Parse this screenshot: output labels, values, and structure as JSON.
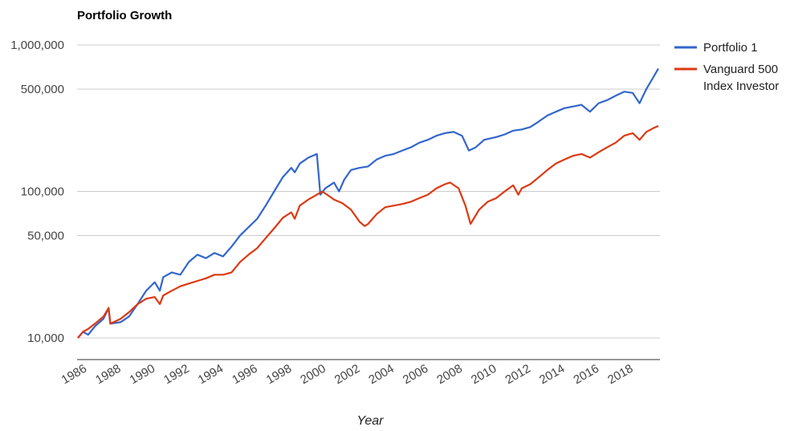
{
  "chart_data": {
    "type": "line",
    "title": "Portfolio Growth",
    "xlabel": "Year",
    "ylabel": "",
    "y_scale": "log",
    "ylim": [
      9000,
      1100000
    ],
    "xlim": [
      1986,
      2020
    ],
    "y_ticks": [
      {
        "value": 10000,
        "label": "10,000"
      },
      {
        "value": 50000,
        "label": "50,000"
      },
      {
        "value": 100000,
        "label": "100,000"
      },
      {
        "value": 500000,
        "label": "500,000"
      },
      {
        "value": 1000000,
        "label": "1,000,000"
      }
    ],
    "x_ticks": [
      {
        "value": 1986,
        "label": "1986"
      },
      {
        "value": 1988,
        "label": "1988"
      },
      {
        "value": 1990,
        "label": "1990"
      },
      {
        "value": 1992,
        "label": "1992"
      },
      {
        "value": 1994,
        "label": "1994"
      },
      {
        "value": 1996,
        "label": "1996"
      },
      {
        "value": 1998,
        "label": "1998"
      },
      {
        "value": 2000,
        "label": "2000"
      },
      {
        "value": 2002,
        "label": "2002"
      },
      {
        "value": 2004,
        "label": "2004"
      },
      {
        "value": 2006,
        "label": "2006"
      },
      {
        "value": 2008,
        "label": "2008"
      },
      {
        "value": 2010,
        "label": "2010"
      },
      {
        "value": 2012,
        "label": "2012"
      },
      {
        "value": 2014,
        "label": "2014"
      },
      {
        "value": 2016,
        "label": "2016"
      },
      {
        "value": 2018,
        "label": "2018"
      }
    ],
    "grid": true,
    "legend_position": "right",
    "series": [
      {
        "name": "Portfolio 1",
        "color": "#3366cc",
        "points": [
          [
            1986.0,
            10000
          ],
          [
            1986.3,
            11000
          ],
          [
            1986.6,
            10500
          ],
          [
            1987.0,
            12000
          ],
          [
            1987.5,
            13500
          ],
          [
            1987.8,
            16000
          ],
          [
            1987.9,
            12500
          ],
          [
            1988.5,
            12800
          ],
          [
            1989.0,
            14000
          ],
          [
            1989.5,
            17000
          ],
          [
            1990.0,
            21000
          ],
          [
            1990.5,
            24000
          ],
          [
            1990.8,
            21000
          ],
          [
            1991.0,
            26000
          ],
          [
            1991.5,
            28000
          ],
          [
            1992.0,
            27000
          ],
          [
            1992.5,
            33000
          ],
          [
            1993.0,
            37000
          ],
          [
            1993.5,
            35000
          ],
          [
            1994.0,
            38000
          ],
          [
            1994.5,
            36000
          ],
          [
            1995.0,
            42000
          ],
          [
            1995.5,
            50000
          ],
          [
            1996.0,
            57000
          ],
          [
            1996.5,
            65000
          ],
          [
            1997.0,
            80000
          ],
          [
            1997.5,
            100000
          ],
          [
            1998.0,
            125000
          ],
          [
            1998.5,
            145000
          ],
          [
            1998.7,
            135000
          ],
          [
            1999.0,
            155000
          ],
          [
            1999.5,
            170000
          ],
          [
            2000.0,
            180000
          ],
          [
            2000.2,
            95000
          ],
          [
            2000.5,
            105000
          ],
          [
            2001.0,
            115000
          ],
          [
            2001.3,
            100000
          ],
          [
            2001.6,
            120000
          ],
          [
            2002.0,
            140000
          ],
          [
            2002.5,
            145000
          ],
          [
            2003.0,
            148000
          ],
          [
            2003.5,
            165000
          ],
          [
            2004.0,
            175000
          ],
          [
            2004.5,
            180000
          ],
          [
            2005.0,
            190000
          ],
          [
            2005.5,
            200000
          ],
          [
            2006.0,
            215000
          ],
          [
            2006.5,
            225000
          ],
          [
            2007.0,
            240000
          ],
          [
            2007.5,
            250000
          ],
          [
            2008.0,
            255000
          ],
          [
            2008.5,
            240000
          ],
          [
            2008.9,
            190000
          ],
          [
            2009.3,
            200000
          ],
          [
            2009.8,
            225000
          ],
          [
            2010.5,
            235000
          ],
          [
            2011.0,
            245000
          ],
          [
            2011.5,
            260000
          ],
          [
            2012.0,
            265000
          ],
          [
            2012.5,
            275000
          ],
          [
            2013.0,
            300000
          ],
          [
            2013.5,
            330000
          ],
          [
            2014.0,
            350000
          ],
          [
            2014.5,
            370000
          ],
          [
            2015.0,
            380000
          ],
          [
            2015.5,
            390000
          ],
          [
            2016.0,
            350000
          ],
          [
            2016.5,
            400000
          ],
          [
            2017.0,
            420000
          ],
          [
            2017.5,
            450000
          ],
          [
            2018.0,
            480000
          ],
          [
            2018.5,
            470000
          ],
          [
            2018.9,
            400000
          ],
          [
            2019.3,
            500000
          ],
          [
            2019.7,
            600000
          ],
          [
            2020.0,
            690000
          ]
        ]
      },
      {
        "name": "Vanguard 500 Index Investor",
        "color": "#dc3912",
        "points": [
          [
            1986.0,
            10000
          ],
          [
            1986.3,
            11000
          ],
          [
            1986.6,
            11500
          ],
          [
            1987.0,
            12500
          ],
          [
            1987.5,
            14000
          ],
          [
            1987.8,
            16000
          ],
          [
            1987.9,
            12500
          ],
          [
            1988.5,
            13500
          ],
          [
            1989.0,
            15000
          ],
          [
            1989.5,
            17000
          ],
          [
            1990.0,
            18500
          ],
          [
            1990.5,
            19000
          ],
          [
            1990.8,
            17000
          ],
          [
            1991.0,
            19500
          ],
          [
            1991.5,
            21000
          ],
          [
            1992.0,
            22500
          ],
          [
            1992.5,
            23500
          ],
          [
            1993.0,
            24500
          ],
          [
            1993.5,
            25500
          ],
          [
            1994.0,
            27000
          ],
          [
            1994.5,
            27000
          ],
          [
            1995.0,
            28000
          ],
          [
            1995.5,
            33000
          ],
          [
            1996.0,
            37000
          ],
          [
            1996.5,
            41000
          ],
          [
            1997.0,
            48000
          ],
          [
            1997.5,
            56000
          ],
          [
            1998.0,
            66000
          ],
          [
            1998.5,
            72000
          ],
          [
            1998.7,
            65000
          ],
          [
            1999.0,
            80000
          ],
          [
            1999.5,
            88000
          ],
          [
            2000.0,
            95000
          ],
          [
            2000.3,
            100000
          ],
          [
            2000.6,
            95000
          ],
          [
            2001.0,
            88000
          ],
          [
            2001.5,
            83000
          ],
          [
            2002.0,
            75000
          ],
          [
            2002.5,
            62000
          ],
          [
            2002.8,
            58000
          ],
          [
            2003.0,
            60000
          ],
          [
            2003.5,
            70000
          ],
          [
            2004.0,
            78000
          ],
          [
            2004.5,
            80000
          ],
          [
            2005.0,
            82000
          ],
          [
            2005.5,
            85000
          ],
          [
            2006.0,
            90000
          ],
          [
            2006.5,
            95000
          ],
          [
            2007.0,
            105000
          ],
          [
            2007.5,
            112000
          ],
          [
            2007.8,
            115000
          ],
          [
            2008.3,
            105000
          ],
          [
            2008.7,
            80000
          ],
          [
            2009.0,
            60000
          ],
          [
            2009.5,
            75000
          ],
          [
            2010.0,
            85000
          ],
          [
            2010.5,
            90000
          ],
          [
            2011.0,
            100000
          ],
          [
            2011.5,
            110000
          ],
          [
            2011.8,
            95000
          ],
          [
            2012.0,
            105000
          ],
          [
            2012.5,
            112000
          ],
          [
            2013.0,
            125000
          ],
          [
            2013.5,
            140000
          ],
          [
            2014.0,
            155000
          ],
          [
            2014.5,
            165000
          ],
          [
            2015.0,
            175000
          ],
          [
            2015.5,
            180000
          ],
          [
            2016.0,
            170000
          ],
          [
            2016.5,
            185000
          ],
          [
            2017.0,
            200000
          ],
          [
            2017.5,
            215000
          ],
          [
            2018.0,
            240000
          ],
          [
            2018.5,
            250000
          ],
          [
            2018.9,
            225000
          ],
          [
            2019.3,
            255000
          ],
          [
            2019.7,
            270000
          ],
          [
            2020.0,
            280000
          ]
        ]
      }
    ]
  }
}
